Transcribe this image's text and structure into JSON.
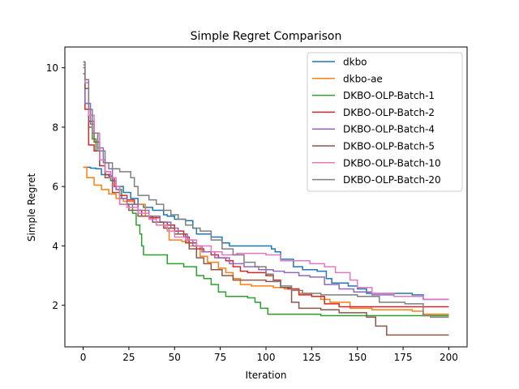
{
  "chart_data": {
    "type": "line",
    "title": "Simple Regret Comparison",
    "xlabel": "Iteration",
    "ylabel": "Simple Regret",
    "xlim": [
      -10,
      210
    ],
    "ylim": [
      0.6,
      10.7
    ],
    "xticks": [
      0,
      25,
      50,
      75,
      100,
      125,
      150,
      175,
      200
    ],
    "yticks": [
      2,
      4,
      6,
      8,
      10
    ],
    "grid": false,
    "legend_position": "top-right",
    "series": [
      {
        "name": "dkbo",
        "color": "#1f77b4",
        "points": [
          [
            0,
            6.65
          ],
          [
            4,
            6.62
          ],
          [
            7,
            6.6
          ],
          [
            10,
            6.4
          ],
          [
            14,
            6.35
          ],
          [
            16,
            6.2
          ],
          [
            18,
            6.0
          ],
          [
            22,
            5.8
          ],
          [
            26,
            5.6
          ],
          [
            30,
            5.4
          ],
          [
            33,
            5.3
          ],
          [
            38,
            5.2
          ],
          [
            44,
            5.05
          ],
          [
            46,
            5.0
          ],
          [
            50,
            4.9
          ],
          [
            56,
            4.85
          ],
          [
            60,
            4.6
          ],
          [
            62,
            4.4
          ],
          [
            66,
            4.4
          ],
          [
            70,
            4.3
          ],
          [
            76,
            4.1
          ],
          [
            80,
            4.0
          ],
          [
            98,
            4.0
          ],
          [
            103,
            3.9
          ],
          [
            105,
            3.8
          ],
          [
            108,
            3.55
          ],
          [
            113,
            3.55
          ],
          [
            115,
            3.3
          ],
          [
            118,
            3.3
          ],
          [
            120,
            3.2
          ],
          [
            128,
            3.15
          ],
          [
            133,
            2.9
          ],
          [
            136,
            2.75
          ],
          [
            140,
            2.75
          ],
          [
            145,
            2.65
          ],
          [
            150,
            2.55
          ],
          [
            155,
            2.4
          ],
          [
            172,
            2.4
          ],
          [
            180,
            2.35
          ],
          [
            186,
            2.2
          ],
          [
            200,
            2.2
          ]
        ]
      },
      {
        "name": "dkbo-ae",
        "color": "#ff7f0e",
        "points": [
          [
            0,
            6.65
          ],
          [
            2,
            6.3
          ],
          [
            6,
            6.05
          ],
          [
            10,
            5.9
          ],
          [
            14,
            5.75
          ],
          [
            18,
            5.6
          ],
          [
            22,
            5.5
          ],
          [
            28,
            5.4
          ],
          [
            34,
            5.0
          ],
          [
            40,
            4.7
          ],
          [
            45,
            4.6
          ],
          [
            47,
            4.2
          ],
          [
            54,
            4.15
          ],
          [
            58,
            4.0
          ],
          [
            64,
            3.65
          ],
          [
            68,
            3.45
          ],
          [
            74,
            3.25
          ],
          [
            78,
            3.1
          ],
          [
            82,
            2.9
          ],
          [
            86,
            2.7
          ],
          [
            92,
            2.65
          ],
          [
            104,
            2.6
          ],
          [
            110,
            2.55
          ],
          [
            118,
            2.4
          ],
          [
            125,
            2.3
          ],
          [
            130,
            2.2
          ],
          [
            135,
            2.1
          ],
          [
            146,
            1.9
          ],
          [
            158,
            1.85
          ],
          [
            170,
            1.85
          ],
          [
            180,
            1.8
          ],
          [
            186,
            1.7
          ],
          [
            200,
            1.7
          ]
        ]
      },
      {
        "name": "DKBO-OLP-Batch-1",
        "color": "#2ca02c",
        "points": [
          [
            0,
            10.0
          ],
          [
            1,
            8.8
          ],
          [
            3,
            8.0
          ],
          [
            5,
            7.6
          ],
          [
            7,
            7.2
          ],
          [
            9,
            6.9
          ],
          [
            12,
            6.5
          ],
          [
            15,
            6.2
          ],
          [
            18,
            5.9
          ],
          [
            21,
            5.6
          ],
          [
            24,
            5.4
          ],
          [
            27,
            5.1
          ],
          [
            29,
            4.7
          ],
          [
            31,
            4.4
          ],
          [
            32,
            4.0
          ],
          [
            33,
            3.7
          ],
          [
            40,
            3.7
          ],
          [
            46,
            3.4
          ],
          [
            52,
            3.4
          ],
          [
            55,
            3.3
          ],
          [
            60,
            3.3
          ],
          [
            62,
            3.0
          ],
          [
            66,
            2.9
          ],
          [
            70,
            2.7
          ],
          [
            74,
            2.45
          ],
          [
            78,
            2.3
          ],
          [
            90,
            2.25
          ],
          [
            94,
            2.1
          ],
          [
            97,
            1.9
          ],
          [
            100,
            1.9
          ],
          [
            101,
            1.7
          ],
          [
            118,
            1.7
          ],
          [
            130,
            1.65
          ],
          [
            155,
            1.65
          ],
          [
            200,
            1.65
          ]
        ]
      },
      {
        "name": "DKBO-OLP-Batch-2",
        "color": "#d62728",
        "points": [
          [
            0,
            9.8
          ],
          [
            1,
            8.6
          ],
          [
            3,
            7.4
          ],
          [
            6,
            7.2
          ],
          [
            9,
            6.7
          ],
          [
            12,
            6.4
          ],
          [
            15,
            6.3
          ],
          [
            17,
            6.0
          ],
          [
            20,
            5.7
          ],
          [
            24,
            5.55
          ],
          [
            28,
            5.4
          ],
          [
            30,
            5.2
          ],
          [
            32,
            5.0
          ],
          [
            36,
            4.95
          ],
          [
            42,
            4.8
          ],
          [
            46,
            4.7
          ],
          [
            50,
            4.5
          ],
          [
            55,
            4.3
          ],
          [
            58,
            4.1
          ],
          [
            62,
            3.9
          ],
          [
            66,
            3.8
          ],
          [
            70,
            3.7
          ],
          [
            74,
            3.6
          ],
          [
            78,
            3.5
          ],
          [
            82,
            3.3
          ],
          [
            86,
            3.15
          ],
          [
            90,
            3.1
          ],
          [
            100,
            3.0
          ],
          [
            104,
            2.85
          ],
          [
            108,
            2.6
          ],
          [
            112,
            2.55
          ],
          [
            118,
            2.35
          ],
          [
            125,
            2.3
          ],
          [
            132,
            2.05
          ],
          [
            140,
            1.95
          ],
          [
            146,
            1.95
          ],
          [
            150,
            1.95
          ],
          [
            170,
            1.95
          ],
          [
            200,
            1.95
          ]
        ]
      },
      {
        "name": "DKBO-OLP-Batch-4",
        "color": "#9467bd",
        "points": [
          [
            0,
            10.1
          ],
          [
            1,
            8.8
          ],
          [
            4,
            8.1
          ],
          [
            6,
            7.8
          ],
          [
            8,
            7.3
          ],
          [
            11,
            6.8
          ],
          [
            14,
            6.6
          ],
          [
            16,
            6.2
          ],
          [
            18,
            5.9
          ],
          [
            20,
            5.6
          ],
          [
            24,
            5.4
          ],
          [
            30,
            5.2
          ],
          [
            36,
            5.0
          ],
          [
            42,
            4.8
          ],
          [
            48,
            4.6
          ],
          [
            52,
            4.4
          ],
          [
            57,
            4.2
          ],
          [
            60,
            4.0
          ],
          [
            65,
            3.8
          ],
          [
            72,
            3.6
          ],
          [
            80,
            3.4
          ],
          [
            88,
            3.3
          ],
          [
            96,
            3.2
          ],
          [
            104,
            3.15
          ],
          [
            110,
            3.1
          ],
          [
            118,
            3.0
          ],
          [
            124,
            2.95
          ],
          [
            132,
            2.7
          ],
          [
            140,
            2.55
          ],
          [
            148,
            2.45
          ],
          [
            158,
            2.35
          ],
          [
            170,
            2.3
          ],
          [
            186,
            2.2
          ],
          [
            200,
            2.2
          ]
        ]
      },
      {
        "name": "DKBO-OLP-Batch-5",
        "color": "#8c564b",
        "points": [
          [
            0,
            10.2
          ],
          [
            1,
            9.3
          ],
          [
            3,
            8.2
          ],
          [
            6,
            7.5
          ],
          [
            9,
            6.7
          ],
          [
            12,
            6.3
          ],
          [
            16,
            5.8
          ],
          [
            20,
            5.4
          ],
          [
            25,
            5.2
          ],
          [
            30,
            5.0
          ],
          [
            38,
            4.8
          ],
          [
            44,
            4.6
          ],
          [
            50,
            4.4
          ],
          [
            56,
            4.1
          ],
          [
            58,
            3.9
          ],
          [
            62,
            3.6
          ],
          [
            66,
            3.4
          ],
          [
            70,
            3.2
          ],
          [
            76,
            3.0
          ],
          [
            82,
            2.85
          ],
          [
            90,
            2.85
          ],
          [
            100,
            2.8
          ],
          [
            108,
            2.6
          ],
          [
            114,
            2.1
          ],
          [
            118,
            1.9
          ],
          [
            130,
            1.85
          ],
          [
            140,
            1.75
          ],
          [
            155,
            1.6
          ],
          [
            160,
            1.3
          ],
          [
            166,
            1.0
          ],
          [
            180,
            1.0
          ],
          [
            200,
            1.0
          ]
        ]
      },
      {
        "name": "DKBO-OLP-Batch-10",
        "color": "#e377c2",
        "points": [
          [
            0,
            10.1
          ],
          [
            1,
            9.5
          ],
          [
            3,
            8.4
          ],
          [
            6,
            7.8
          ],
          [
            9,
            6.9
          ],
          [
            12,
            6.5
          ],
          [
            15,
            6.3
          ],
          [
            18,
            6.0
          ],
          [
            20,
            5.4
          ],
          [
            24,
            5.3
          ],
          [
            30,
            5.1
          ],
          [
            36,
            4.9
          ],
          [
            40,
            4.7
          ],
          [
            46,
            4.5
          ],
          [
            50,
            4.3
          ],
          [
            56,
            4.2
          ],
          [
            62,
            4.0
          ],
          [
            70,
            3.8
          ],
          [
            76,
            3.7
          ],
          [
            84,
            3.75
          ],
          [
            100,
            3.7
          ],
          [
            108,
            3.5
          ],
          [
            116,
            3.5
          ],
          [
            124,
            3.4
          ],
          [
            132,
            3.3
          ],
          [
            138,
            3.1
          ],
          [
            146,
            2.85
          ],
          [
            150,
            2.6
          ],
          [
            158,
            2.4
          ],
          [
            170,
            2.3
          ],
          [
            186,
            2.2
          ],
          [
            200,
            2.2
          ]
        ]
      },
      {
        "name": "DKBO-OLP-Batch-20",
        "color": "#7f7f7f",
        "points": [
          [
            0,
            10.2
          ],
          [
            1,
            9.6
          ],
          [
            3,
            8.6
          ],
          [
            5,
            7.8
          ],
          [
            8,
            7.2
          ],
          [
            12,
            6.8
          ],
          [
            16,
            6.6
          ],
          [
            20,
            6.5
          ],
          [
            26,
            6.3
          ],
          [
            28,
            6.0
          ],
          [
            30,
            5.7
          ],
          [
            36,
            5.55
          ],
          [
            40,
            5.4
          ],
          [
            44,
            5.2
          ],
          [
            48,
            5.05
          ],
          [
            52,
            4.9
          ],
          [
            56,
            4.7
          ],
          [
            60,
            4.6
          ],
          [
            64,
            4.5
          ],
          [
            70,
            4.2
          ],
          [
            76,
            3.9
          ],
          [
            82,
            3.7
          ],
          [
            88,
            3.45
          ],
          [
            94,
            3.3
          ],
          [
            100,
            3.05
          ],
          [
            104,
            2.8
          ],
          [
            108,
            2.65
          ],
          [
            114,
            2.5
          ],
          [
            120,
            2.4
          ],
          [
            130,
            2.35
          ],
          [
            150,
            2.3
          ],
          [
            162,
            2.1
          ],
          [
            176,
            2.05
          ],
          [
            186,
            1.65
          ],
          [
            190,
            1.6
          ],
          [
            200,
            1.6
          ]
        ]
      }
    ]
  }
}
